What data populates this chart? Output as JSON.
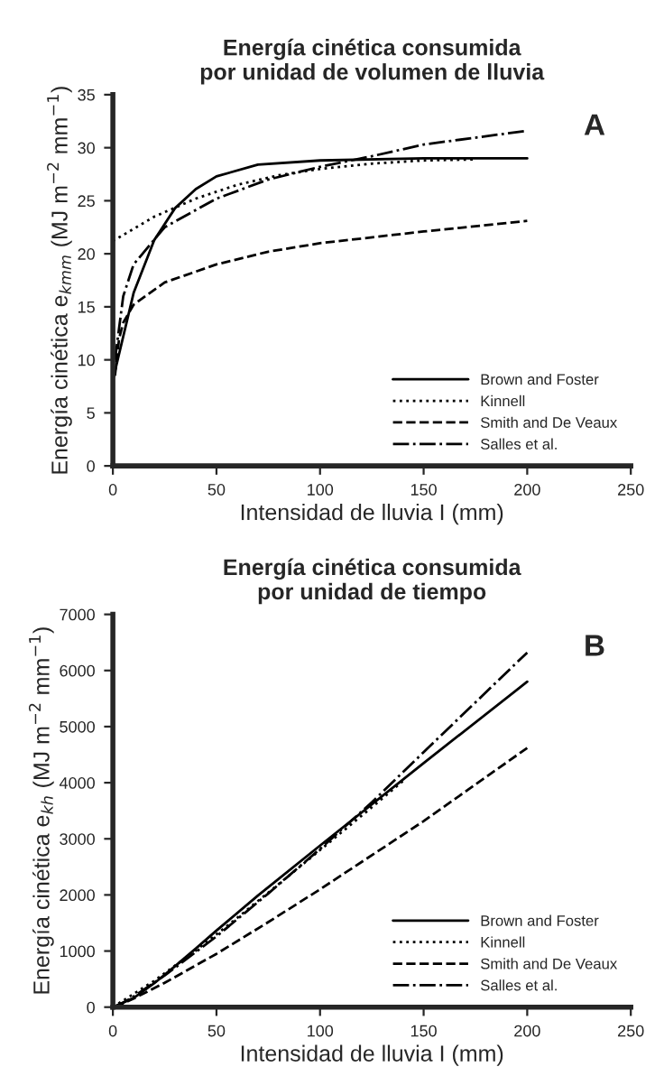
{
  "chart_data": [
    {
      "type": "line",
      "title": "Energía cinética consumida\npor unidad de volumen de lluvia",
      "xlabel": "Intensidad de lluvia I (mm)",
      "ylabel": "Energía cinética e$_{kmm}$ (MJ m$^{−2}$ mm$^{−1}$)",
      "annotations": [
        "A"
      ],
      "xlim": [
        0,
        250
      ],
      "xticks": [
        0,
        50,
        100,
        150,
        200,
        250
      ],
      "ylim": [
        0,
        35
      ],
      "yticks": [
        0,
        5,
        10,
        15,
        20,
        25,
        30,
        35
      ],
      "grid": false,
      "legend": "bottom right",
      "series": [
        {
          "name": "Brown and Foster",
          "color": "#000000",
          "line_style": "solid",
          "x": [
            0,
            10,
            20,
            30,
            40,
            50,
            70,
            100,
            150,
            200
          ],
          "values": [
            8.1,
            16.3,
            21.3,
            24.3,
            26.1,
            27.3,
            28.4,
            28.8,
            29,
            29
          ]
        },
        {
          "name": "Kinnell",
          "color": "#000000",
          "line_style": "dotted",
          "x": [
            0,
            20,
            40,
            60,
            80,
            100,
            125,
            150,
            175
          ],
          "values": [
            21.2,
            23.5,
            25.2,
            26.5,
            27.4,
            28.0,
            28.5,
            28.8,
            28.9
          ]
        },
        {
          "name": "Smith and De Veaux",
          "color": "#000000",
          "line_style": "dashed",
          "x": [
            1,
            3,
            5,
            10,
            25,
            50,
            75,
            100,
            150,
            200
          ],
          "values": [
            8.5,
            12,
            13.5,
            15.2,
            17.3,
            19,
            20.2,
            21,
            22.1,
            23.1
          ]
        },
        {
          "name": "Salles et al.",
          "color": "#000000",
          "line_style": "dashdot",
          "x": [
            1,
            5,
            10,
            25,
            50,
            75,
            100,
            125,
            150,
            200
          ],
          "values": [
            10,
            16,
            19,
            22.5,
            25.2,
            27,
            28.2,
            29.2,
            30.3,
            31.6
          ]
        }
      ]
    },
    {
      "type": "line",
      "title": "Energía cinética consumida\npor unidad de tiempo",
      "xlabel": "Intensidad de lluvia I (mm)",
      "ylabel": "Energía cinética e$_{kh}$ (MJ m$^{−2}$ mm$^{−1}$)",
      "annotations": [
        "B"
      ],
      "xlim": [
        0,
        250
      ],
      "xticks": [
        0,
        50,
        100,
        150,
        200,
        250
      ],
      "ylim": [
        0,
        7000
      ],
      "yticks": [
        0,
        1000,
        2000,
        3000,
        4000,
        5000,
        6000,
        7000
      ],
      "grid": false,
      "legend": "bottom right",
      "series": [
        {
          "name": "Brown and Foster",
          "color": "#000000",
          "line_style": "solid",
          "x": [
            0,
            10,
            20,
            30,
            40,
            50,
            70,
            100,
            150,
            200
          ],
          "values": [
            0,
            163,
            426,
            729,
            1044,
            1365,
            1988,
            2880,
            4350,
            5800
          ]
        },
        {
          "name": "Kinnell",
          "color": "#000000",
          "line_style": "dotted",
          "x": [
            0,
            20,
            40,
            60,
            80,
            100,
            125,
            140
          ],
          "values": [
            0,
            470,
            1008,
            1590,
            2192,
            2800,
            3563,
            4030
          ]
        },
        {
          "name": "Smith and De Veaux",
          "color": "#000000",
          "line_style": "dashed",
          "x": [
            1,
            3,
            5,
            10,
            25,
            50,
            75,
            100,
            150,
            200
          ],
          "values": [
            8.5,
            36,
            68,
            152,
            433,
            950,
            1515,
            2100,
            3315,
            4620
          ]
        },
        {
          "name": "Salles et al.",
          "color": "#000000",
          "line_style": "dashdot",
          "x": [
            1,
            5,
            10,
            25,
            50,
            75,
            100,
            125,
            150,
            200
          ],
          "values": [
            10,
            80,
            190,
            563,
            1260,
            2025,
            2820,
            3650,
            4545,
            6320
          ]
        }
      ]
    }
  ]
}
